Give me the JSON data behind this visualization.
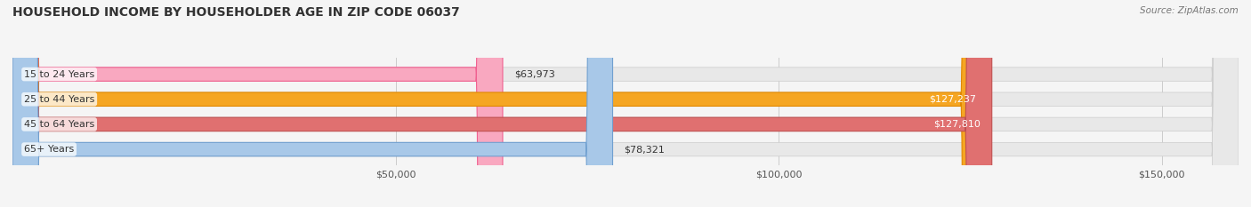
{
  "title": "HOUSEHOLD INCOME BY HOUSEHOLDER AGE IN ZIP CODE 06037",
  "source": "Source: ZipAtlas.com",
  "categories": [
    "15 to 24 Years",
    "25 to 44 Years",
    "45 to 64 Years",
    "65+ Years"
  ],
  "values": [
    63973,
    127237,
    127810,
    78321
  ],
  "bar_colors": [
    "#f9a8c0",
    "#f5a623",
    "#e07070",
    "#a8c8e8"
  ],
  "bar_edge_colors": [
    "#f06090",
    "#e08800",
    "#c05050",
    "#70a0d0"
  ],
  "x_ticks": [
    50000,
    100000,
    150000
  ],
  "x_tick_labels": [
    "$50,000",
    "$100,000",
    "$150,000"
  ],
  "xlim": [
    0,
    160000
  ],
  "bar_height": 0.55,
  "figsize": [
    14.06,
    2.33
  ],
  "dpi": 100,
  "background_color": "#f5f5f5",
  "title_fontsize": 10,
  "source_fontsize": 7.5,
  "label_fontsize": 8,
  "category_fontsize": 8,
  "tick_fontsize": 8
}
